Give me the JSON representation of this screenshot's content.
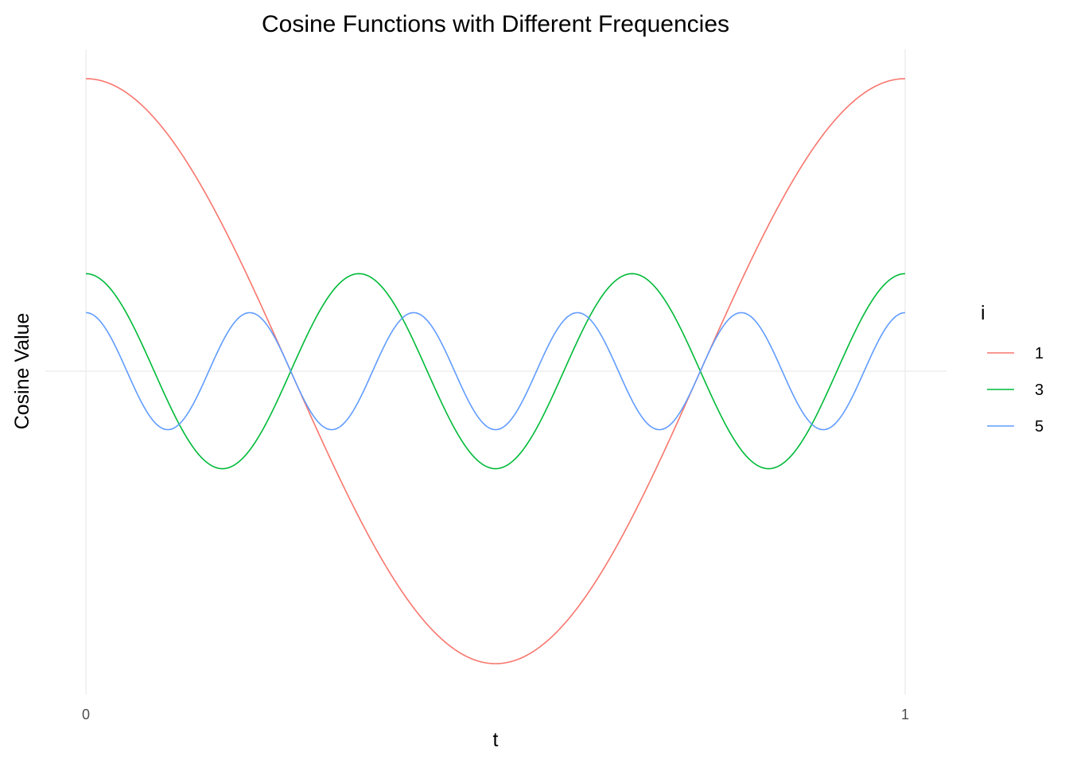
{
  "chart_data": {
    "type": "line",
    "title": "Cosine Functions with Different Frequencies",
    "xlabel": "t",
    "ylabel": "Cosine Value",
    "xlim": [
      0,
      1
    ],
    "ylim": [
      -1,
      1
    ],
    "x_ticks": [
      "0",
      "1"
    ],
    "y_ticks": [],
    "grid": "on",
    "legend": {
      "title": "i",
      "placement": "right"
    },
    "function": "cos(2*pi*i*t)/i",
    "series": [
      {
        "name": "1",
        "frequency": 1,
        "amplitude": 1.0,
        "color": "#F8766D"
      },
      {
        "name": "3",
        "frequency": 3,
        "amplitude": 0.3333,
        "color": "#00BA38"
      },
      {
        "name": "5",
        "frequency": 5,
        "amplitude": 0.2,
        "color": "#619CFF"
      }
    ]
  }
}
